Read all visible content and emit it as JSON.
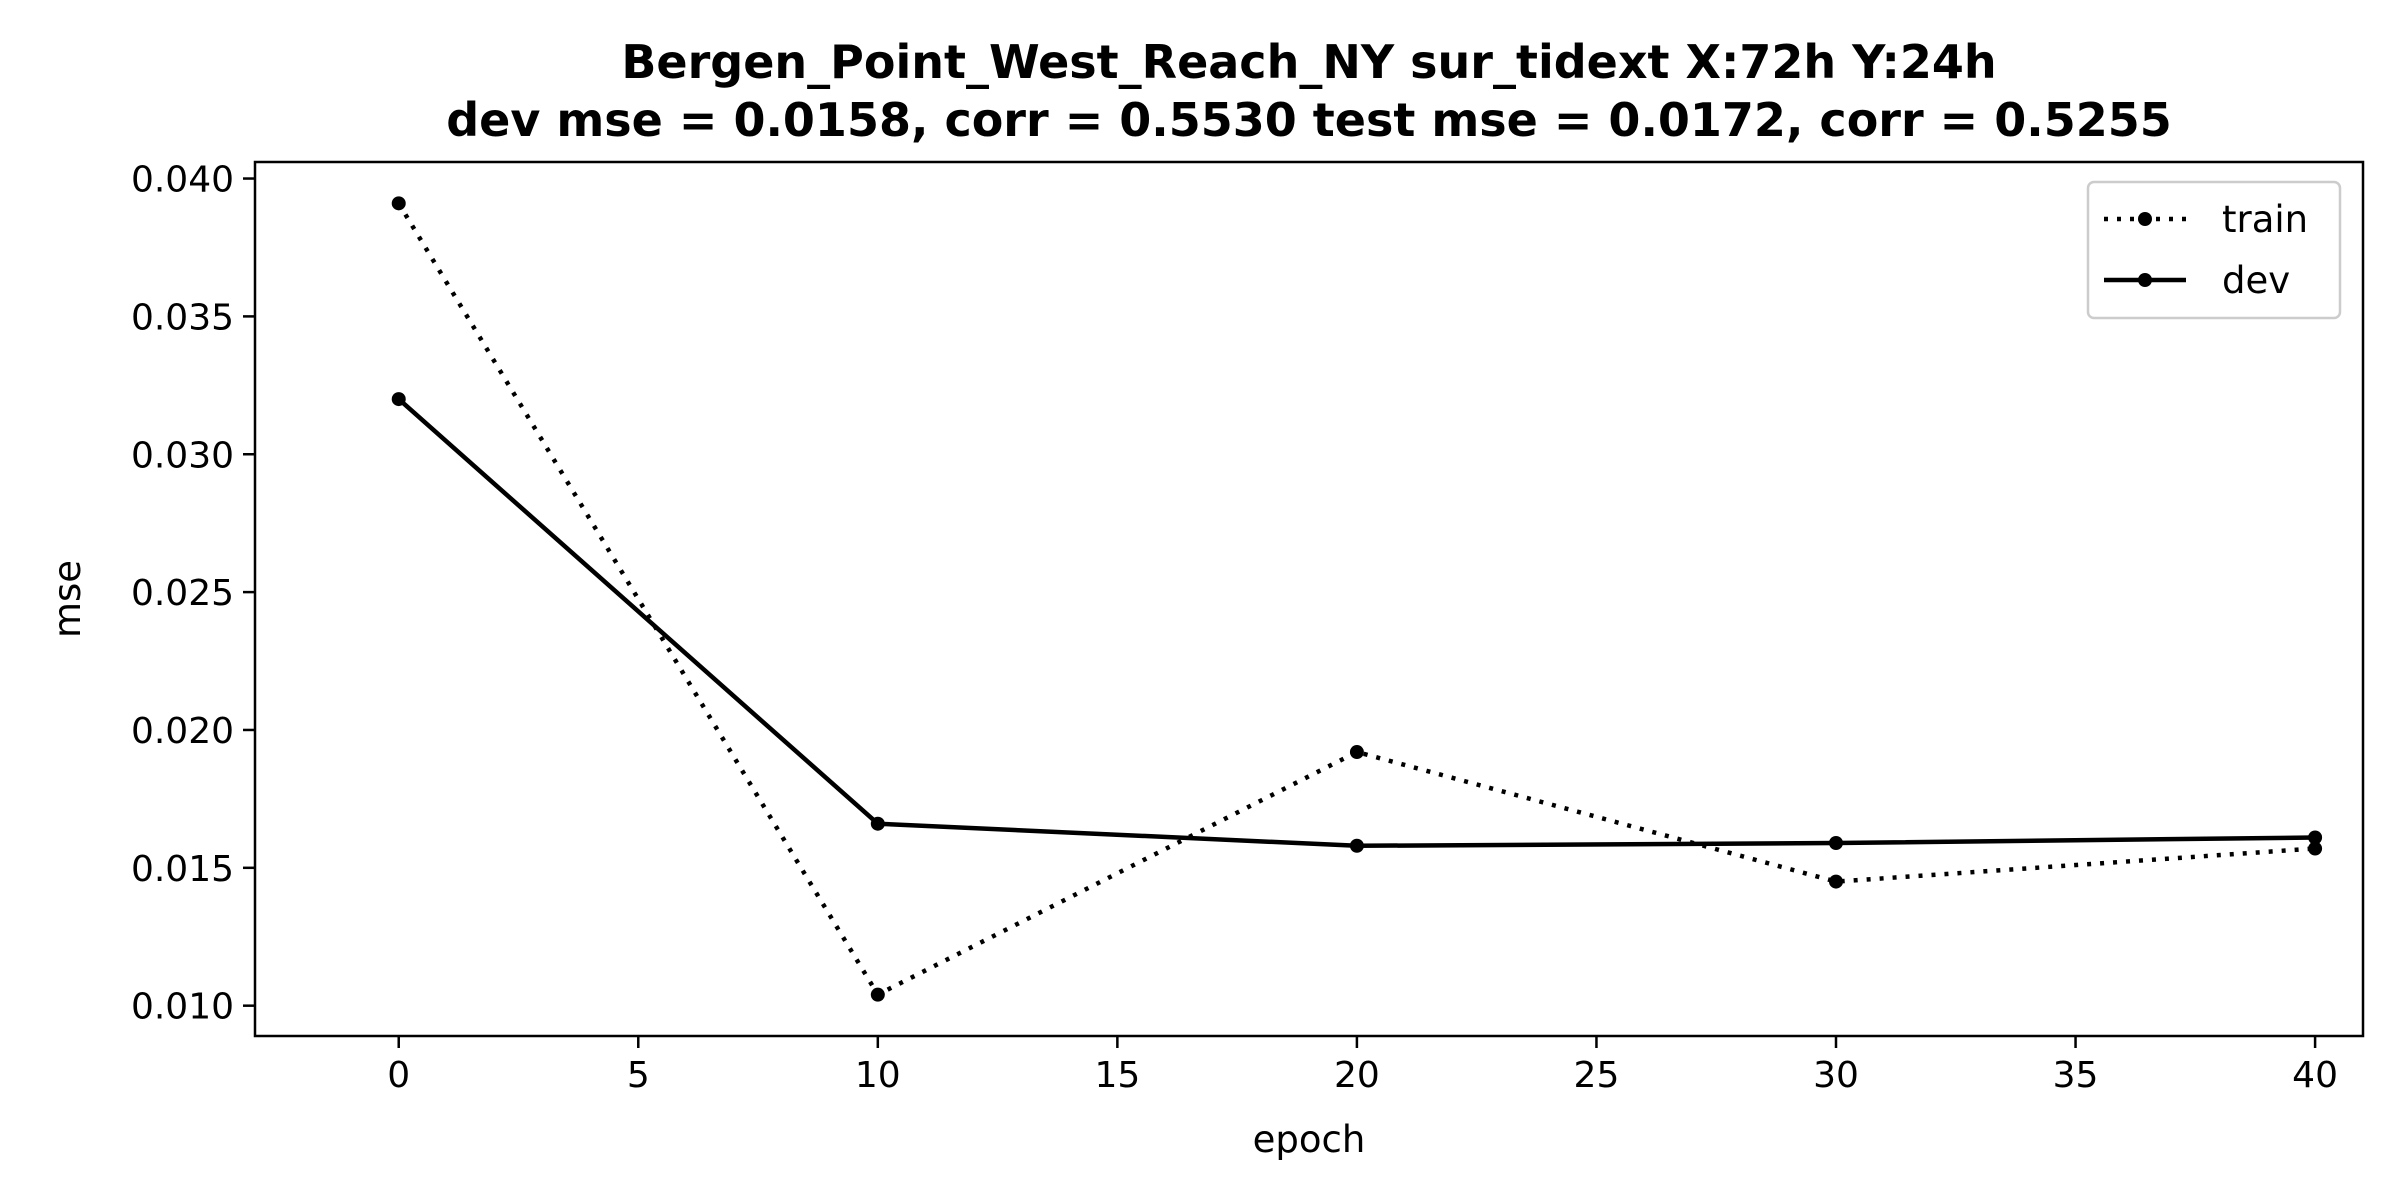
{
  "chart_data": {
    "type": "line",
    "title_lines": [
      "Bergen_Point_West_Reach_NY   sur_tidext   X:72h   Y:24h",
      "dev mse = 0.0158, corr = 0.5530   test mse = 0.0172, corr = 0.5255"
    ],
    "xlabel": "epoch",
    "ylabel": "mse",
    "xlim": [
      -3,
      41
    ],
    "ylim": [
      0.0089,
      0.0406
    ],
    "xticks": [
      0,
      5,
      10,
      15,
      20,
      25,
      30,
      35,
      40
    ],
    "yticks": [
      0.01,
      0.015,
      0.02,
      0.025,
      0.03,
      0.035,
      0.04
    ],
    "ytick_labels": [
      "0.010",
      "0.015",
      "0.020",
      "0.025",
      "0.030",
      "0.035",
      "0.040"
    ],
    "x": [
      0,
      10,
      20,
      30,
      40
    ],
    "series": [
      {
        "name": "train",
        "style": "dotted",
        "values": [
          0.0391,
          0.0104,
          0.0192,
          0.0145,
          0.0157
        ]
      },
      {
        "name": "dev",
        "style": "solid",
        "values": [
          0.032,
          0.0166,
          0.0158,
          0.0159,
          0.0161
        ]
      }
    ],
    "legend_position": "top-right",
    "grid": false,
    "color": "#000000"
  }
}
